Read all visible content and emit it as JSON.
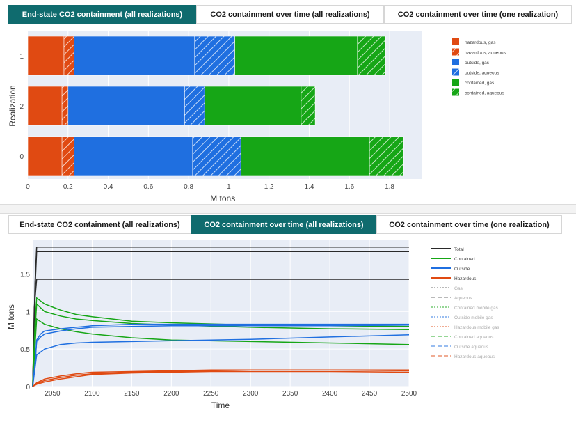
{
  "tabs_top": [
    {
      "label": "End-state CO2 containment (all realizations)",
      "active": true
    },
    {
      "label": "CO2 containment over time (all realizations)",
      "active": false
    },
    {
      "label": "CO2 containment over time (one realization)",
      "active": false
    }
  ],
  "tabs_bottom": [
    {
      "label": "End-state CO2 containment (all realizations)",
      "active": false
    },
    {
      "label": "CO2 containment over time (all realizations)",
      "active": true
    },
    {
      "label": "CO2 containment over time (one realization)",
      "active": false
    }
  ],
  "colors": {
    "hazardous": "#e04a12",
    "outside": "#1f6fe0",
    "contained": "#16a616",
    "total": "#2a2a2a",
    "plot_bg": "#e8edf6",
    "accent_tab": "#0f6b6e"
  },
  "chart_data": [
    {
      "type": "bar",
      "orientation": "horizontal",
      "stacked": true,
      "xlabel": "M tons",
      "ylabel": "Realization",
      "xlim": [
        0,
        1.9
      ],
      "xticks": [
        "0",
        "0.2",
        "0.4",
        "0.6",
        "0.8",
        "1",
        "1.2",
        "1.4",
        "1.6",
        "1.8"
      ],
      "categories": [
        "1",
        "2",
        "0"
      ],
      "legend_position": "right",
      "series": [
        {
          "name": "hazardous, gas",
          "color": "#e04a12",
          "hatched": false,
          "values": [
            0.18,
            0.17,
            0.17
          ]
        },
        {
          "name": "hazardous, aqueous",
          "color": "#e04a12",
          "hatched": true,
          "values": [
            0.05,
            0.03,
            0.06
          ]
        },
        {
          "name": "outside, gas",
          "color": "#1f6fe0",
          "hatched": false,
          "values": [
            0.6,
            0.58,
            0.59
          ]
        },
        {
          "name": "outside, aqueous",
          "color": "#1f6fe0",
          "hatched": true,
          "values": [
            0.2,
            0.1,
            0.24
          ]
        },
        {
          "name": "contained, gas",
          "color": "#16a616",
          "hatched": false,
          "values": [
            0.61,
            0.48,
            0.64
          ]
        },
        {
          "name": "contained, aqueous",
          "color": "#16a616",
          "hatched": true,
          "values": [
            0.14,
            0.07,
            0.17
          ]
        }
      ]
    },
    {
      "type": "line",
      "xlabel": "Time",
      "ylabel": "M tons",
      "xlim": [
        2025,
        2500
      ],
      "ylim": [
        0,
        1.95
      ],
      "xticks": [
        "2050",
        "2100",
        "2150",
        "2200",
        "2250",
        "2300",
        "2350",
        "2400",
        "2450",
        "2500"
      ],
      "yticks": [
        "0",
        "0.5",
        "1",
        "1.5"
      ],
      "legend_position": "right",
      "legend": [
        {
          "name": "Total",
          "color": "#2a2a2a",
          "dash": "solid",
          "faded": false
        },
        {
          "name": "Contained",
          "color": "#16a616",
          "dash": "solid",
          "faded": false
        },
        {
          "name": "Outside",
          "color": "#1f6fe0",
          "dash": "solid",
          "faded": false
        },
        {
          "name": "Hazardous",
          "color": "#e04a12",
          "dash": "solid",
          "faded": false
        },
        {
          "name": "Gas",
          "color": "#666666",
          "dash": "dot",
          "faded": true
        },
        {
          "name": "Aqueous",
          "color": "#666666",
          "dash": "dash",
          "faded": true
        },
        {
          "name": "Contained mobile gas",
          "color": "#16a616",
          "dash": "dot",
          "faded": true
        },
        {
          "name": "Outside mobile gas",
          "color": "#1f6fe0",
          "dash": "dot",
          "faded": true
        },
        {
          "name": "Hazardous mobile gas",
          "color": "#e04a12",
          "dash": "dot",
          "faded": true
        },
        {
          "name": "Contained aqueous",
          "color": "#16a616",
          "dash": "dash",
          "faded": true
        },
        {
          "name": "Outside aqueous",
          "color": "#1f6fe0",
          "dash": "dash",
          "faded": true
        },
        {
          "name": "Hazardous aqueous",
          "color": "#e04a12",
          "dash": "dash",
          "faded": true
        }
      ],
      "series": [
        {
          "group": "Total",
          "color": "#2a2a2a",
          "x": [
            2025,
            2027,
            2030,
            2500
          ],
          "y": [
            0,
            1.05,
            1.43,
            1.43
          ]
        },
        {
          "group": "Total",
          "color": "#2a2a2a",
          "x": [
            2025,
            2028,
            2030,
            2500
          ],
          "y": [
            0,
            1.3,
            1.8,
            1.8
          ]
        },
        {
          "group": "Total",
          "color": "#2a2a2a",
          "x": [
            2025,
            2028,
            2030,
            2500
          ],
          "y": [
            0,
            1.4,
            1.86,
            1.86
          ]
        },
        {
          "group": "Contained",
          "color": "#16a616",
          "x": [
            2025,
            2028,
            2030,
            2040,
            2060,
            2080,
            2100,
            2150,
            2200,
            2300,
            2400,
            2500
          ],
          "y": [
            0,
            0.85,
            1.18,
            1.1,
            1.02,
            0.96,
            0.93,
            0.87,
            0.85,
            0.82,
            0.81,
            0.8
          ]
        },
        {
          "group": "Contained",
          "color": "#16a616",
          "x": [
            2025,
            2028,
            2030,
            2040,
            2060,
            2080,
            2100,
            2150,
            2200,
            2300,
            2400,
            2500
          ],
          "y": [
            0,
            0.75,
            1.1,
            1.0,
            0.94,
            0.9,
            0.88,
            0.84,
            0.82,
            0.79,
            0.77,
            0.76
          ]
        },
        {
          "group": "Contained",
          "color": "#16a616",
          "x": [
            2025,
            2028,
            2030,
            2040,
            2060,
            2080,
            2100,
            2150,
            2200,
            2300,
            2400,
            2500
          ],
          "y": [
            0,
            0.55,
            0.9,
            0.83,
            0.77,
            0.73,
            0.7,
            0.65,
            0.62,
            0.6,
            0.58,
            0.56
          ]
        },
        {
          "group": "Outside",
          "color": "#1f6fe0",
          "x": [
            2025,
            2028,
            2030,
            2035,
            2040,
            2060,
            2080,
            2100,
            2150,
            2200,
            2300,
            2400,
            2500
          ],
          "y": [
            0,
            0.3,
            0.6,
            0.66,
            0.7,
            0.74,
            0.77,
            0.79,
            0.8,
            0.81,
            0.81,
            0.81,
            0.82
          ]
        },
        {
          "group": "Outside",
          "color": "#1f6fe0",
          "x": [
            2025,
            2028,
            2030,
            2035,
            2040,
            2060,
            2080,
            2100,
            2150,
            2200,
            2300,
            2400,
            2500
          ],
          "y": [
            0,
            0.32,
            0.62,
            0.7,
            0.74,
            0.77,
            0.79,
            0.81,
            0.83,
            0.83,
            0.83,
            0.83,
            0.83
          ]
        },
        {
          "group": "Outside",
          "color": "#1f6fe0",
          "x": [
            2025,
            2028,
            2030,
            2040,
            2060,
            2080,
            2100,
            2150,
            2200,
            2300,
            2400,
            2500
          ],
          "y": [
            0,
            0.25,
            0.42,
            0.5,
            0.56,
            0.58,
            0.59,
            0.6,
            0.61,
            0.63,
            0.66,
            0.69
          ]
        },
        {
          "group": "Hazardous",
          "color": "#e04a12",
          "x": [
            2025,
            2030,
            2040,
            2060,
            2080,
            2100,
            2150,
            2200,
            2250,
            2300,
            2400,
            2500
          ],
          "y": [
            0,
            0.05,
            0.1,
            0.14,
            0.17,
            0.19,
            0.2,
            0.21,
            0.22,
            0.22,
            0.22,
            0.22
          ]
        },
        {
          "group": "Hazardous",
          "color": "#e04a12",
          "x": [
            2025,
            2030,
            2040,
            2060,
            2080,
            2100,
            2150,
            2200,
            2250,
            2300,
            2400,
            2500
          ],
          "y": [
            0,
            0.04,
            0.08,
            0.12,
            0.15,
            0.17,
            0.19,
            0.2,
            0.21,
            0.22,
            0.22,
            0.21
          ]
        },
        {
          "group": "Hazardous",
          "color": "#e04a12",
          "x": [
            2025,
            2030,
            2040,
            2060,
            2080,
            2100,
            2150,
            2200,
            2250,
            2300,
            2400,
            2500
          ],
          "y": [
            0,
            0.03,
            0.06,
            0.1,
            0.13,
            0.16,
            0.18,
            0.19,
            0.2,
            0.2,
            0.2,
            0.19
          ]
        }
      ]
    }
  ]
}
